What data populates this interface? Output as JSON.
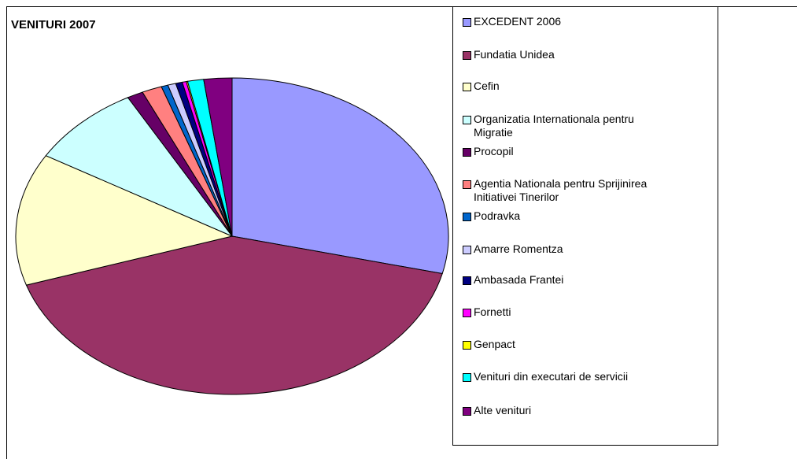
{
  "chart_data": {
    "type": "pie",
    "title": "VENITURI 2007",
    "categories": [
      "EXCEDENT 2006",
      "Fundatia Unidea",
      "Cefin",
      "Organizatia Internationala pentru Migratie",
      "Procopil",
      "Agentia Nationala pentru Sprijinirea Initiativei Tinerilor",
      "Podravka",
      "Amarre Romentza",
      "Ambasada Frantei",
      "Fornetti",
      "Genpact",
      "Venituri din executari de servicii",
      "Alte venituri"
    ],
    "values": [
      28.8,
      41.2,
      13.5,
      8.5,
      1.2,
      1.5,
      0.5,
      0.6,
      0.5,
      0.3,
      0.1,
      1.2,
      2.1
    ],
    "colors": [
      "#9999ff",
      "#993366",
      "#ffffcc",
      "#ccffff",
      "#660066",
      "#ff8080",
      "#0066cc",
      "#ccccff",
      "#000080",
      "#ff00ff",
      "#ffff00",
      "#00ffff",
      "#800080"
    ],
    "legend": "right"
  }
}
